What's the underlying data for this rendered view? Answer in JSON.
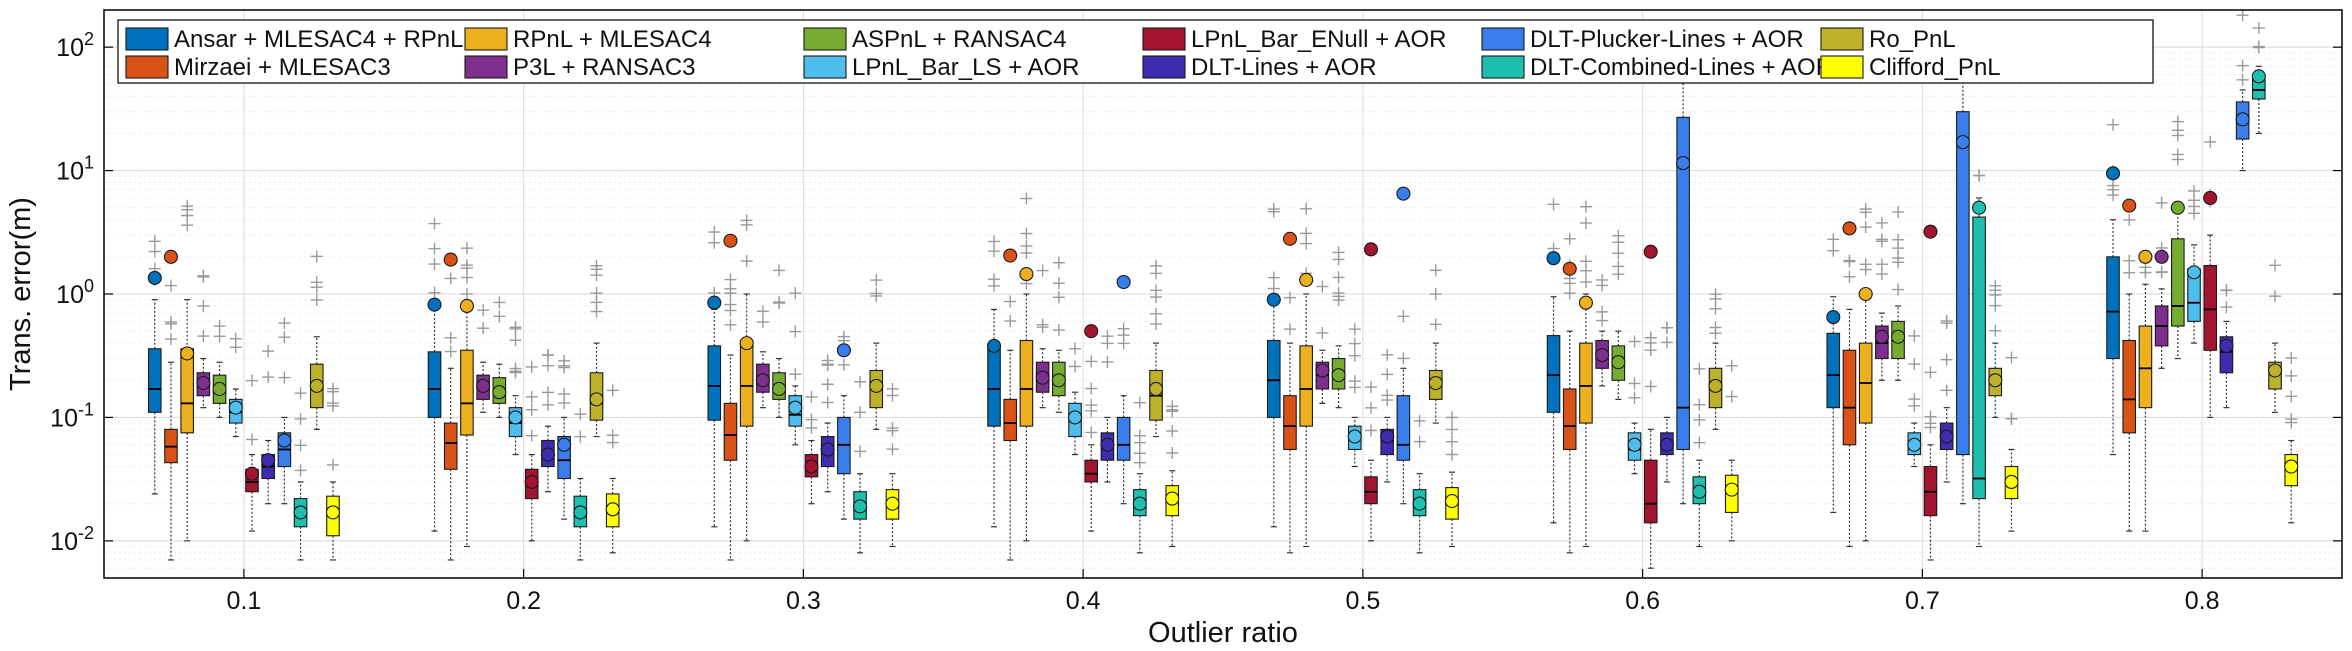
{
  "chart_data": {
    "type": "box",
    "xlabel": "Outlier ratio",
    "ylabel": "Trans. error(m)",
    "yscale": "log",
    "ylim": [
      0.005,
      200
    ],
    "yticks": [
      0.01,
      0.1,
      1,
      10,
      100
    ],
    "ytick_labels": [
      {
        "base": "10",
        "exp": "-2"
      },
      {
        "base": "10",
        "exp": "-1"
      },
      {
        "base": "10",
        "exp": "0"
      },
      {
        "base": "10",
        "exp": "1"
      },
      {
        "base": "10",
        "exp": "2"
      }
    ],
    "categories": [
      "0.1",
      "0.2",
      "0.3",
      "0.4",
      "0.5",
      "0.6",
      "0.7",
      "0.8"
    ],
    "grid": true,
    "legend_position": "top",
    "series": [
      {
        "name": "Ansar + MLESAC4 + RPnL",
        "color": "#0072BD",
        "q1": [
          0.11,
          0.1,
          0.095,
          0.085,
          0.1,
          0.11,
          0.12,
          0.3
        ],
        "median": [
          0.17,
          0.17,
          0.18,
          0.17,
          0.2,
          0.22,
          0.22,
          0.72
        ],
        "q3": [
          0.36,
          0.34,
          0.38,
          0.37,
          0.42,
          0.46,
          0.48,
          2.0
        ],
        "wlo": [
          0.024,
          0.012,
          0.013,
          0.013,
          0.013,
          0.014,
          0.017,
          0.05
        ],
        "whi": [
          0.9,
          0.75,
          0.75,
          0.75,
          0.85,
          0.95,
          0.95,
          4.0
        ],
        "mean": [
          1.35,
          0.82,
          0.85,
          0.38,
          0.9,
          1.95,
          0.65,
          9.5
        ]
      },
      {
        "name": "Mirzaei + MLESAC3",
        "color": "#D95319",
        "q1": [
          0.043,
          0.038,
          0.045,
          0.065,
          0.055,
          0.055,
          0.06,
          0.075
        ],
        "median": [
          0.058,
          0.062,
          0.072,
          0.09,
          0.085,
          0.085,
          0.12,
          0.14
        ],
        "q3": [
          0.08,
          0.09,
          0.13,
          0.14,
          0.15,
          0.17,
          0.35,
          0.42
        ],
        "wlo": [
          0.007,
          0.007,
          0.007,
          0.007,
          0.008,
          0.008,
          0.009,
          0.012
        ],
        "whi": [
          0.28,
          0.25,
          0.32,
          0.35,
          0.4,
          0.5,
          0.75,
          1.0
        ],
        "mean": [
          2.0,
          1.9,
          2.7,
          2.05,
          2.8,
          1.6,
          3.4,
          5.2
        ]
      },
      {
        "name": "RPnL + MLESAC4",
        "color": "#EDB120",
        "q1": [
          0.075,
          0.072,
          0.085,
          0.085,
          0.085,
          0.09,
          0.09,
          0.12
        ],
        "median": [
          0.13,
          0.13,
          0.18,
          0.17,
          0.17,
          0.18,
          0.19,
          0.25
        ],
        "q3": [
          0.36,
          0.35,
          0.42,
          0.42,
          0.38,
          0.4,
          0.4,
          0.55
        ],
        "wlo": [
          0.01,
          0.009,
          0.01,
          0.01,
          0.009,
          0.009,
          0.01,
          0.012
        ],
        "whi": [
          0.9,
          0.8,
          1.0,
          1.0,
          1.0,
          1.0,
          1.0,
          1.2
        ],
        "mean": [
          0.33,
          0.8,
          0.4,
          1.45,
          1.3,
          0.85,
          1.0,
          2.0
        ]
      },
      {
        "name": "P3L + RANSAC3",
        "color": "#7E2F8E",
        "q1": [
          0.15,
          0.14,
          0.16,
          0.16,
          0.17,
          0.25,
          0.3,
          0.38
        ],
        "median": [
          0.18,
          0.18,
          0.2,
          0.2,
          0.22,
          0.3,
          0.4,
          0.55
        ],
        "q3": [
          0.23,
          0.22,
          0.27,
          0.28,
          0.28,
          0.42,
          0.55,
          0.8
        ],
        "wlo": [
          0.12,
          0.11,
          0.12,
          0.12,
          0.13,
          0.18,
          0.2,
          0.25
        ],
        "whi": [
          0.3,
          0.28,
          0.34,
          0.36,
          0.35,
          0.5,
          0.7,
          1.1
        ],
        "mean": [
          0.19,
          0.18,
          0.2,
          0.21,
          0.24,
          0.32,
          0.45,
          2.0
        ]
      },
      {
        "name": "ASPnL + RANSAC4",
        "color": "#77AC30",
        "q1": [
          0.13,
          0.13,
          0.14,
          0.15,
          0.17,
          0.2,
          0.3,
          0.55
        ],
        "median": [
          0.17,
          0.16,
          0.17,
          0.2,
          0.22,
          0.27,
          0.42,
          0.8
        ],
        "q3": [
          0.22,
          0.21,
          0.23,
          0.28,
          0.3,
          0.38,
          0.6,
          2.8
        ],
        "wlo": [
          0.1,
          0.1,
          0.1,
          0.11,
          0.12,
          0.14,
          0.2,
          0.3
        ],
        "whi": [
          0.28,
          0.27,
          0.3,
          0.35,
          0.38,
          0.5,
          0.8,
          5.0
        ],
        "mean": [
          0.17,
          0.16,
          0.17,
          0.2,
          0.22,
          0.28,
          0.45,
          5.0
        ]
      },
      {
        "name": "LPnL_Bar_LS + AOR",
        "color": "#4DBEEE",
        "q1": [
          0.09,
          0.07,
          0.085,
          0.07,
          0.055,
          0.045,
          0.05,
          0.6
        ],
        "median": [
          0.11,
          0.09,
          0.105,
          0.095,
          0.07,
          0.055,
          0.06,
          0.85
        ],
        "q3": [
          0.14,
          0.12,
          0.15,
          0.13,
          0.085,
          0.075,
          0.075,
          1.6
        ],
        "wlo": [
          0.07,
          0.05,
          0.06,
          0.05,
          0.04,
          0.035,
          0.04,
          0.4
        ],
        "whi": [
          0.17,
          0.15,
          0.18,
          0.16,
          0.1,
          0.09,
          0.09,
          2.5
        ],
        "mean": [
          0.12,
          0.1,
          0.12,
          0.1,
          0.07,
          0.06,
          0.06,
          1.5
        ]
      },
      {
        "name": "LPnL_Bar_ENull + AOR",
        "color": "#A2142F",
        "q1": [
          0.025,
          0.022,
          0.033,
          0.03,
          0.02,
          0.014,
          0.016,
          0.35
        ],
        "median": [
          0.03,
          0.028,
          0.04,
          0.035,
          0.025,
          0.02,
          0.025,
          0.75
        ],
        "q3": [
          0.038,
          0.038,
          0.05,
          0.045,
          0.033,
          0.045,
          0.04,
          1.7
        ],
        "wlo": [
          0.012,
          0.01,
          0.02,
          0.012,
          0.01,
          0.006,
          0.007,
          0.1
        ],
        "whi": [
          0.05,
          0.05,
          0.065,
          0.06,
          0.045,
          0.08,
          0.06,
          3.0
        ],
        "mean": [
          0.035,
          0.03,
          0.04,
          0.5,
          2.3,
          2.2,
          3.2,
          6.0
        ]
      },
      {
        "name": "DLT-Lines + AOR",
        "color": "#3E2CAF",
        "q1": [
          0.032,
          0.04,
          0.04,
          0.045,
          0.05,
          0.05,
          0.055,
          0.23
        ],
        "median": [
          0.04,
          0.05,
          0.055,
          0.06,
          0.065,
          0.06,
          0.07,
          0.34
        ],
        "q3": [
          0.05,
          0.065,
          0.07,
          0.075,
          0.08,
          0.075,
          0.09,
          0.45
        ],
        "wlo": [
          0.02,
          0.025,
          0.025,
          0.03,
          0.03,
          0.03,
          0.03,
          0.12
        ],
        "whi": [
          0.065,
          0.085,
          0.09,
          0.1,
          0.1,
          0.1,
          0.12,
          0.6
        ],
        "mean": [
          0.045,
          0.05,
          0.055,
          0.06,
          0.07,
          0.06,
          0.07,
          0.38
        ]
      },
      {
        "name": "DLT-Plucker-Lines + AOR",
        "color": "#3A7EEE",
        "q1": [
          0.04,
          0.032,
          0.035,
          0.045,
          0.045,
          0.055,
          0.05,
          18.0
        ],
        "median": [
          0.055,
          0.045,
          0.06,
          0.06,
          0.06,
          0.12,
          17.0,
          26.0
        ],
        "q3": [
          0.075,
          0.07,
          0.1,
          0.1,
          0.15,
          27.0,
          30.0,
          36.0
        ],
        "wlo": [
          0.02,
          0.015,
          0.015,
          0.02,
          0.02,
          0.02,
          0.02,
          10.0
        ],
        "whi": [
          0.1,
          0.1,
          0.15,
          0.15,
          0.25,
          60.0,
          60.0,
          45.0
        ],
        "mean": [
          0.065,
          0.06,
          0.35,
          1.25,
          6.5,
          11.5,
          17.0,
          26.0
        ]
      },
      {
        "name": "DLT-Combined-Lines + AOR",
        "color": "#1FBFB0",
        "q1": [
          0.013,
          0.013,
          0.015,
          0.016,
          0.016,
          0.02,
          0.022,
          38.0
        ],
        "median": [
          0.016,
          0.017,
          0.019,
          0.02,
          0.02,
          0.025,
          0.032,
          45.0
        ],
        "q3": [
          0.022,
          0.023,
          0.025,
          0.026,
          0.026,
          0.033,
          4.2,
          55.0
        ],
        "wlo": [
          0.007,
          0.007,
          0.008,
          0.008,
          0.008,
          0.009,
          0.009,
          20.0
        ],
        "whi": [
          0.03,
          0.032,
          0.035,
          0.035,
          0.035,
          0.045,
          6.0,
          70.0
        ],
        "mean": [
          0.017,
          0.017,
          0.019,
          0.02,
          0.02,
          0.025,
          5.0,
          58.0
        ]
      },
      {
        "name": "Ro_PnL",
        "color": "#BDB22A",
        "q1": [
          0.12,
          0.095,
          0.12,
          0.095,
          0.14,
          0.12,
          0.15,
          0.17
        ],
        "median": [
          0.17,
          0.13,
          0.17,
          0.15,
          0.18,
          0.17,
          0.19,
          0.23
        ],
        "q3": [
          0.27,
          0.23,
          0.24,
          0.24,
          0.24,
          0.25,
          0.25,
          0.28
        ],
        "wlo": [
          0.08,
          0.07,
          0.08,
          0.07,
          0.09,
          0.08,
          0.1,
          0.11
        ],
        "whi": [
          0.45,
          0.4,
          0.4,
          0.4,
          0.4,
          0.4,
          0.4,
          0.4
        ],
        "mean": [
          0.18,
          0.14,
          0.18,
          0.17,
          0.19,
          0.18,
          0.2,
          0.24
        ]
      },
      {
        "name": "Clifford_PnL",
        "color": "#FFFF00",
        "q1": [
          0.011,
          0.013,
          0.015,
          0.016,
          0.015,
          0.017,
          0.022,
          0.028
        ],
        "median": [
          0.017,
          0.018,
          0.02,
          0.021,
          0.021,
          0.025,
          0.03,
          0.038
        ],
        "q3": [
          0.023,
          0.024,
          0.026,
          0.028,
          0.027,
          0.034,
          0.04,
          0.05
        ],
        "wlo": [
          0.007,
          0.008,
          0.009,
          0.009,
          0.009,
          0.01,
          0.012,
          0.014
        ],
        "whi": [
          0.03,
          0.032,
          0.035,
          0.037,
          0.036,
          0.045,
          0.055,
          0.065
        ],
        "mean": [
          0.017,
          0.018,
          0.02,
          0.022,
          0.021,
          0.026,
          0.03,
          0.04
        ]
      }
    ]
  }
}
